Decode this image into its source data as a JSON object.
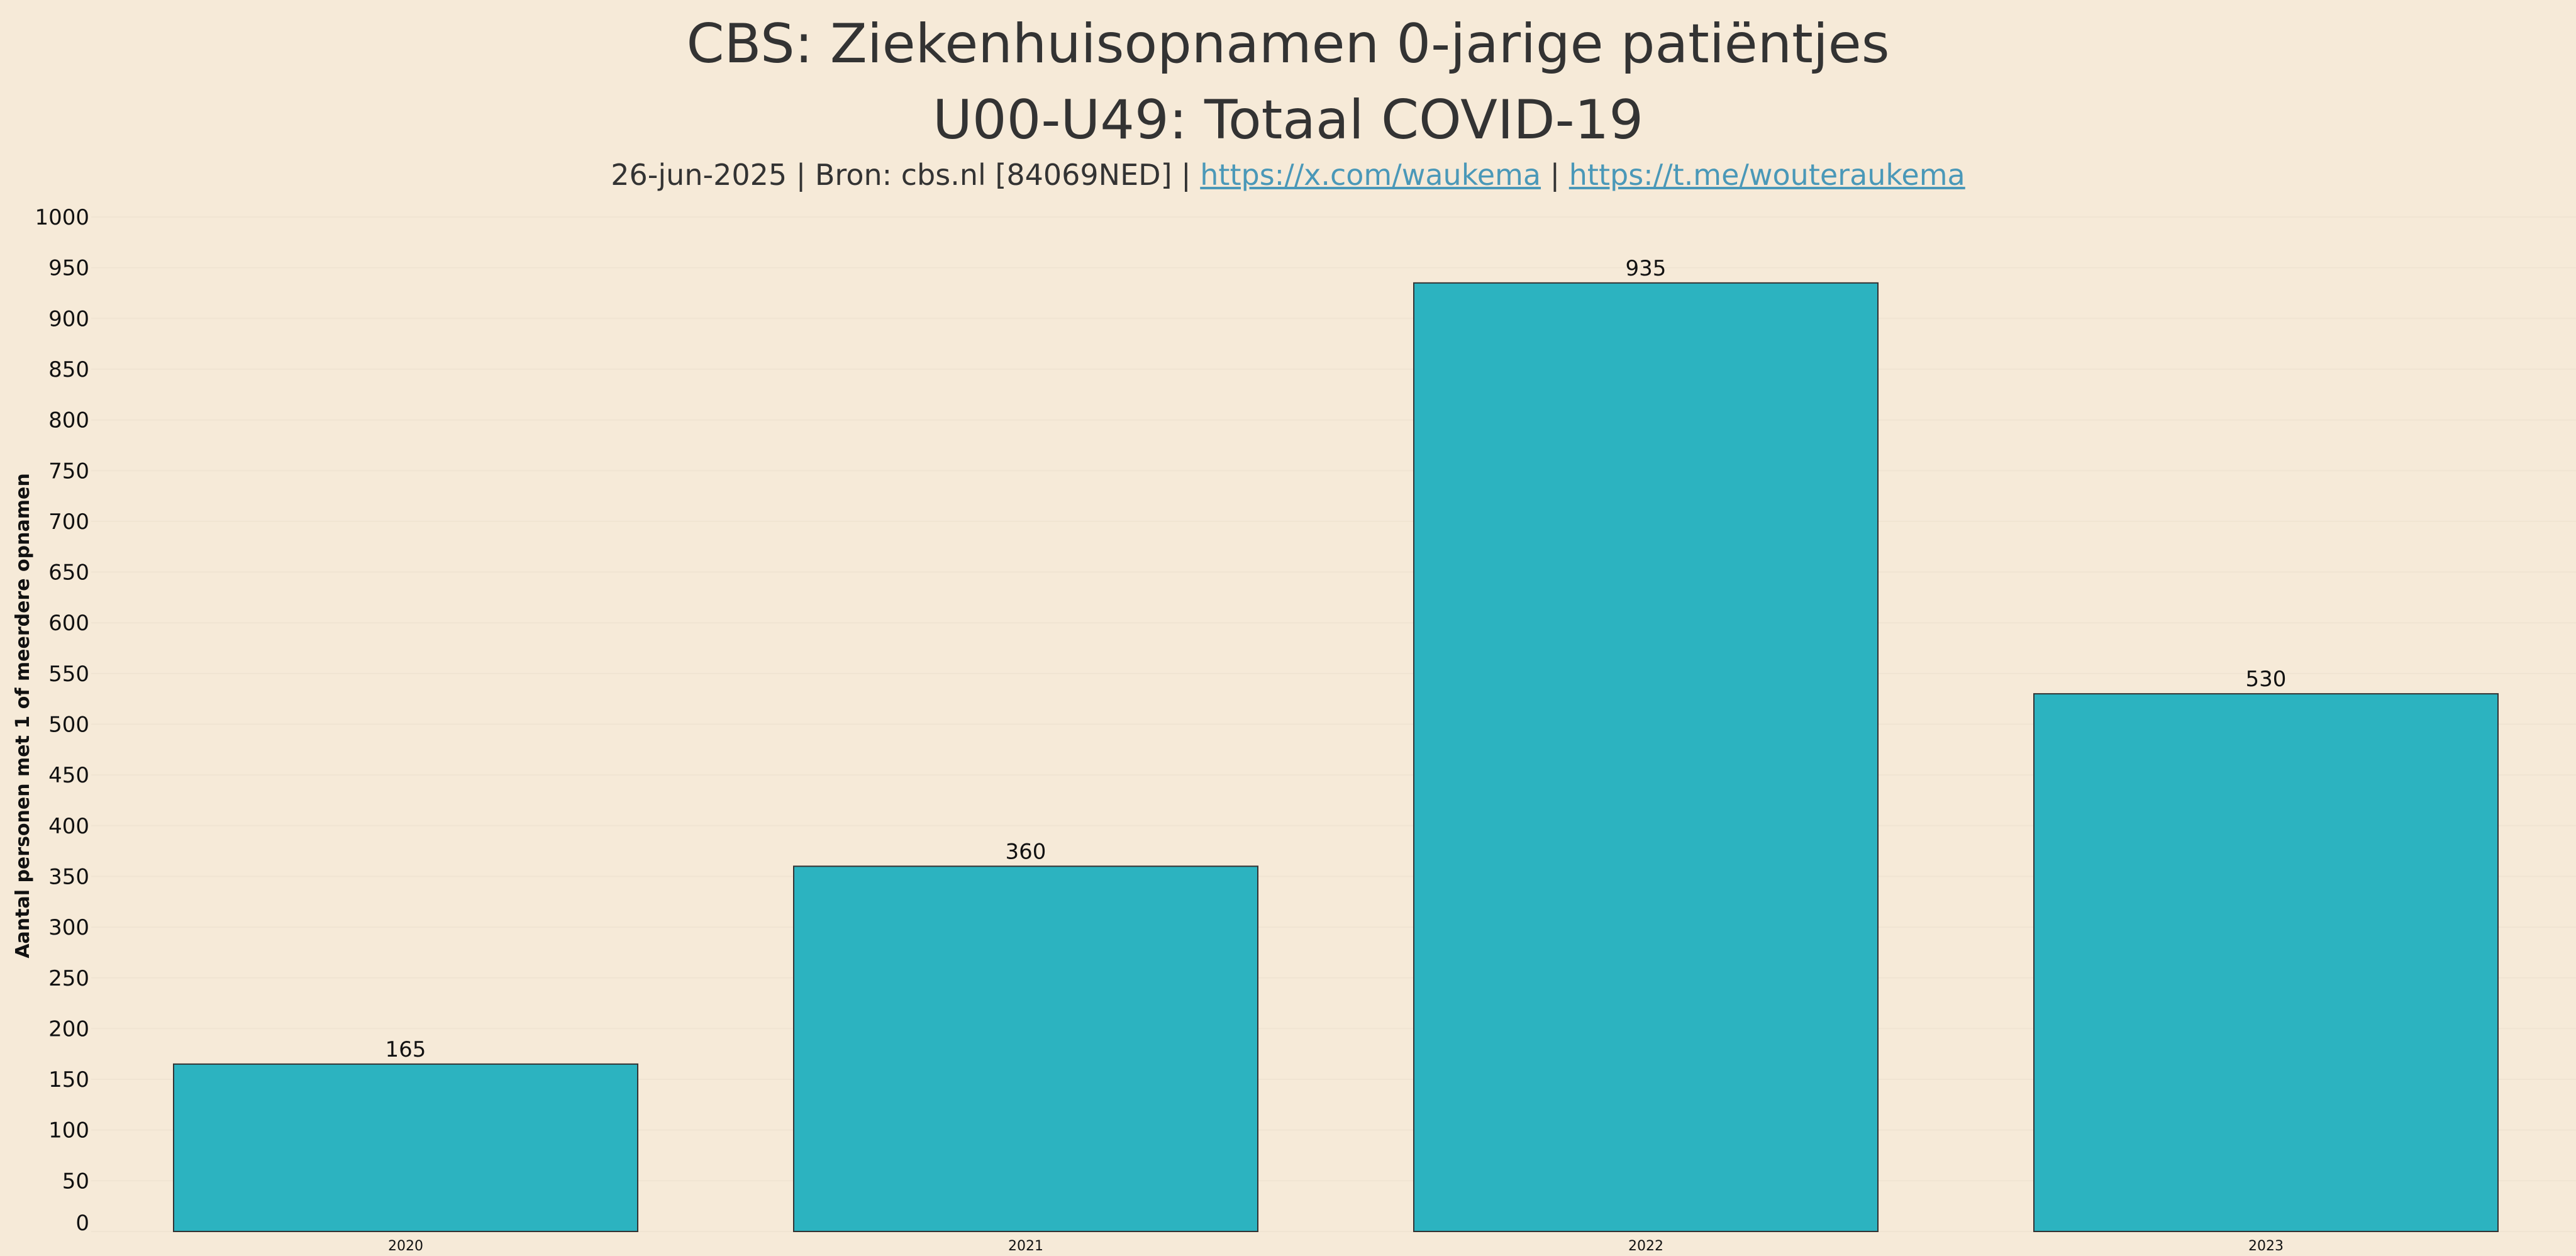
{
  "chart_data": {
    "type": "bar",
    "title_lines": [
      "CBS: Ziekenhuisopnamen 0-jarige patiëntjes",
      "U00-U49: Totaal COVID-19"
    ],
    "subtitle": {
      "prefix": "26-jun-2025 | Bron: cbs.nl [84069NED] | ",
      "link1": "https://x.com/waukema",
      "separator": " | ",
      "link2": "https://t.me/wouteraukema"
    },
    "categories": [
      "2020",
      "2021",
      "2022",
      "2023"
    ],
    "values": [
      165,
      360,
      935,
      530
    ],
    "data_labels": [
      "165",
      "360",
      "935",
      "530"
    ],
    "xlabel": "",
    "ylabel": "Aantal personen met 1 of meerdere opnamen",
    "ylim": [
      0,
      1000
    ],
    "yticks": [
      0,
      50,
      100,
      150,
      200,
      250,
      300,
      350,
      400,
      450,
      500,
      550,
      600,
      650,
      700,
      750,
      800,
      850,
      900,
      950,
      1000
    ],
    "grid": true,
    "legend": "none",
    "colors": {
      "bar": "#2cb3c0",
      "bar_edge": "#333333",
      "background": "#f6ead8",
      "grid": "#f0e4d2",
      "link": "#4a98b8"
    }
  }
}
